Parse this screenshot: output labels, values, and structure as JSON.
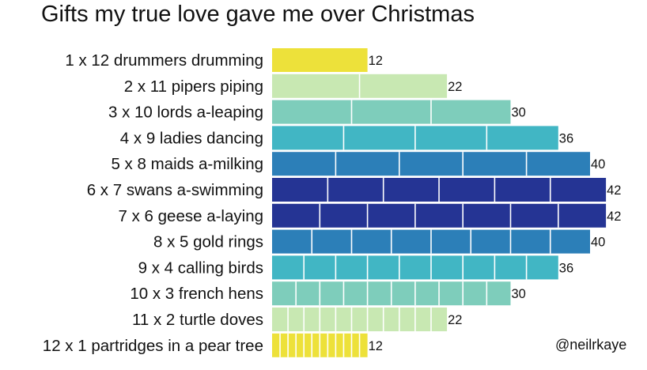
{
  "chart_data": {
    "type": "bar",
    "orientation": "horizontal",
    "title": "Gifts my true love gave me over Christmas",
    "categories": [
      "1 x 12 drummers drumming",
      "2 x 11 pipers piping",
      "3 x 10 lords a-leaping",
      "4 x 9 ladies dancing",
      "5 x 8 maids a-milking",
      "6 x 7 swans a-swimming",
      "7 x 6 geese a-laying",
      "8 x 5 gold rings",
      "9 x 4 calling birds",
      "10 x 3 french hens",
      "11 x 2 turtle doves",
      "12 x 1 partridges in a pear tree"
    ],
    "segments": [
      1,
      2,
      3,
      4,
      5,
      6,
      7,
      8,
      9,
      10,
      11,
      12
    ],
    "values": [
      12,
      22,
      30,
      36,
      40,
      42,
      42,
      40,
      36,
      30,
      22,
      12
    ],
    "value_labels": [
      "12",
      "22",
      "30",
      "36",
      "40",
      "42",
      "42",
      "40",
      "36",
      "30",
      "22",
      "12"
    ],
    "colors": [
      "#ede13a",
      "#c8e8b2",
      "#7ecdbb",
      "#41b6c4",
      "#2c7fb8",
      "#253494",
      "#253494",
      "#2c7fb8",
      "#41b6c4",
      "#7ecdbb",
      "#c8e8b2",
      "#ede13a"
    ],
    "segment_divider_color": "#ffffff",
    "xlim": [
      0,
      42
    ],
    "axes_visible": false,
    "grid": false,
    "legend": "none"
  },
  "credit": "@neilrkaye"
}
